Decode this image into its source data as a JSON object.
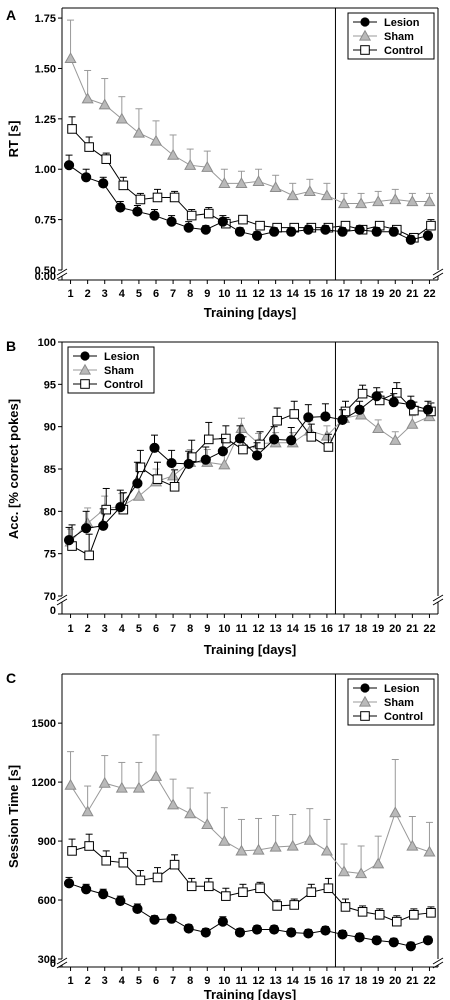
{
  "chart_data": [
    {
      "panel": "A",
      "type": "line",
      "xlabel": "Training [days]",
      "ylabel": "RT [s]",
      "x": [
        1,
        2,
        3,
        4,
        5,
        6,
        7,
        8,
        9,
        10,
        11,
        12,
        13,
        14,
        15,
        16,
        17,
        18,
        19,
        20,
        21,
        22
      ],
      "xlim": [
        0.5,
        22.5
      ],
      "ylim": [
        0.5,
        1.8
      ],
      "yticks": [
        0.5,
        0.75,
        1.0,
        1.25,
        1.5,
        1.75
      ],
      "ytick_labels": [
        "0.50",
        "0.75",
        "1.00",
        "1.25",
        "1.50",
        "1.75"
      ],
      "zero_label": "0.00",
      "vline": 16.5,
      "legend": "top-right",
      "series": [
        {
          "name": "Lesion",
          "marker": "circle",
          "color": "#000000",
          "values": [
            1.02,
            0.96,
            0.93,
            0.81,
            0.79,
            0.77,
            0.74,
            0.71,
            0.7,
            0.74,
            0.69,
            0.67,
            0.69,
            0.69,
            0.7,
            0.7,
            0.69,
            0.7,
            0.69,
            0.69,
            0.65,
            0.67
          ],
          "errors": [
            0.05,
            0.04,
            0.03,
            0.03,
            0.03,
            0.03,
            0.03,
            0.03,
            0.02,
            0.03,
            0.02,
            0.02,
            0.02,
            0.02,
            0.02,
            0.02,
            0.02,
            0.02,
            0.02,
            0.02,
            0.02,
            0.02
          ]
        },
        {
          "name": "Sham",
          "marker": "triangle",
          "color": "#999999",
          "values": [
            1.55,
            1.35,
            1.32,
            1.25,
            1.18,
            1.14,
            1.07,
            1.02,
            1.01,
            0.93,
            0.93,
            0.94,
            0.91,
            0.87,
            0.89,
            0.87,
            0.83,
            0.83,
            0.84,
            0.85,
            0.84,
            0.84
          ],
          "errors": [
            0.19,
            0.14,
            0.13,
            0.11,
            0.12,
            0.1,
            0.1,
            0.08,
            0.08,
            0.07,
            0.06,
            0.06,
            0.06,
            0.06,
            0.06,
            0.06,
            0.05,
            0.05,
            0.05,
            0.05,
            0.04,
            0.04
          ]
        },
        {
          "name": "Control",
          "marker": "square",
          "color": "#000000",
          "values": [
            1.2,
            1.11,
            1.05,
            0.92,
            0.85,
            0.86,
            0.86,
            0.77,
            0.78,
            0.73,
            0.75,
            0.72,
            0.71,
            0.71,
            0.71,
            0.71,
            0.72,
            0.7,
            0.72,
            0.7,
            0.66,
            0.72
          ],
          "errors": [
            0.06,
            0.05,
            0.03,
            0.04,
            0.03,
            0.04,
            0.03,
            0.03,
            0.03,
            0.03,
            0.02,
            0.02,
            0.02,
            0.02,
            0.02,
            0.02,
            0.02,
            0.02,
            0.02,
            0.02,
            0.02,
            0.03
          ]
        }
      ]
    },
    {
      "panel": "B",
      "type": "line",
      "xlabel": "Training [days]",
      "ylabel": "Acc. [% correct pokes]",
      "x": [
        1,
        2,
        3,
        4,
        5,
        6,
        7,
        8,
        9,
        10,
        11,
        12,
        13,
        14,
        15,
        16,
        17,
        18,
        19,
        20,
        21,
        22
      ],
      "xlim": [
        0.5,
        22.5
      ],
      "ylim": [
        70,
        100
      ],
      "yticks": [
        70,
        75,
        80,
        85,
        90,
        95,
        100
      ],
      "ytick_labels": [
        "70",
        "75",
        "80",
        "85",
        "90",
        "95",
        "100"
      ],
      "zero_label": "0",
      "vline": 16.5,
      "legend": "top-left",
      "series": [
        {
          "name": "Lesion",
          "marker": "circle",
          "color": "#000000",
          "values": [
            76.6,
            78.0,
            78.3,
            80.5,
            83.3,
            87.5,
            85.7,
            85.6,
            86.1,
            87.1,
            88.6,
            86.6,
            88.5,
            88.4,
            91.1,
            91.2,
            90.8,
            92.0,
            93.6,
            92.9,
            92.6,
            92.0
          ],
          "errors": [
            1.5,
            2.0,
            2.0,
            2.0,
            2.5,
            1.5,
            1.5,
            1.5,
            1.5,
            1.5,
            1.5,
            1.5,
            1.5,
            1.5,
            1.5,
            1.5,
            1.2,
            1.0,
            1.0,
            1.0,
            1.0,
            1.0
          ]
        },
        {
          "name": "Sham",
          "marker": "triangle",
          "color": "#999999",
          "values": [
            76.4,
            78.6,
            80.3,
            80.6,
            81.8,
            83.5,
            84.2,
            85.8,
            85.8,
            85.5,
            89.8,
            88.0,
            88.1,
            88.1,
            89.5,
            88.9,
            91.0,
            91.4,
            89.8,
            88.4,
            90.3,
            91.2
          ],
          "errors": [
            1.5,
            1.8,
            1.5,
            1.5,
            1.5,
            1.5,
            1.5,
            1.5,
            1.5,
            1.5,
            1.2,
            1.2,
            1.2,
            1.2,
            1.2,
            1.2,
            1.0,
            1.0,
            1.0,
            1.0,
            1.0,
            1.0
          ]
        },
        {
          "name": "Control",
          "marker": "square",
          "color": "#000000",
          "values": [
            75.9,
            74.8,
            80.2,
            80.2,
            85.2,
            83.8,
            82.9,
            86.4,
            88.5,
            88.6,
            87.3,
            87.9,
            90.7,
            91.5,
            88.8,
            87.6,
            91.8,
            93.9,
            93.1,
            94.0,
            91.9,
            91.8
          ],
          "errors": [
            2.5,
            2.5,
            2.5,
            2.0,
            2.0,
            2.0,
            2.0,
            2.0,
            2.0,
            1.5,
            1.5,
            1.5,
            1.5,
            1.5,
            1.5,
            1.5,
            1.2,
            1.0,
            1.0,
            1.2,
            1.0,
            1.0
          ]
        }
      ]
    },
    {
      "panel": "C",
      "type": "line",
      "xlabel": "Training [days]",
      "ylabel": "Session Time [s]",
      "x": [
        1,
        2,
        3,
        4,
        5,
        6,
        7,
        8,
        9,
        10,
        11,
        12,
        13,
        14,
        15,
        16,
        17,
        18,
        19,
        20,
        21,
        22
      ],
      "xlim": [
        0.5,
        22.5
      ],
      "ylim": [
        300,
        1750
      ],
      "yticks": [
        300,
        600,
        900,
        1200,
        1500
      ],
      "ytick_labels": [
        "300",
        "600",
        "900",
        "1200",
        "1500"
      ],
      "zero_label": "0",
      "vline": 16.5,
      "legend": "top-right",
      "series": [
        {
          "name": "Lesion",
          "marker": "circle",
          "color": "#000000",
          "values": [
            685,
            655,
            630,
            595,
            555,
            500,
            505,
            455,
            435,
            490,
            435,
            450,
            450,
            435,
            430,
            445,
            425,
            410,
            395,
            385,
            365,
            395
          ],
          "errors": [
            30,
            25,
            25,
            25,
            25,
            20,
            20,
            20,
            20,
            25,
            20,
            20,
            20,
            20,
            20,
            20,
            20,
            20,
            20,
            20,
            20,
            20
          ]
        },
        {
          "name": "Sham",
          "marker": "triangle",
          "color": "#999999",
          "values": [
            1185,
            1050,
            1195,
            1170,
            1170,
            1230,
            1085,
            1040,
            985,
            900,
            850,
            855,
            870,
            875,
            905,
            850,
            745,
            735,
            785,
            1045,
            875,
            845
          ],
          "errors": [
            170,
            130,
            140,
            130,
            130,
            210,
            130,
            130,
            160,
            170,
            160,
            160,
            160,
            160,
            160,
            160,
            140,
            140,
            140,
            270,
            150,
            150
          ]
        },
        {
          "name": "Control",
          "marker": "square",
          "color": "#000000",
          "values": [
            850,
            875,
            800,
            790,
            700,
            715,
            780,
            670,
            670,
            620,
            640,
            660,
            570,
            575,
            640,
            660,
            565,
            540,
            525,
            490,
            525,
            535
          ],
          "errors": [
            60,
            60,
            50,
            50,
            50,
            50,
            50,
            40,
            40,
            40,
            40,
            30,
            30,
            30,
            40,
            50,
            40,
            30,
            30,
            30,
            30,
            30
          ]
        }
      ]
    }
  ]
}
